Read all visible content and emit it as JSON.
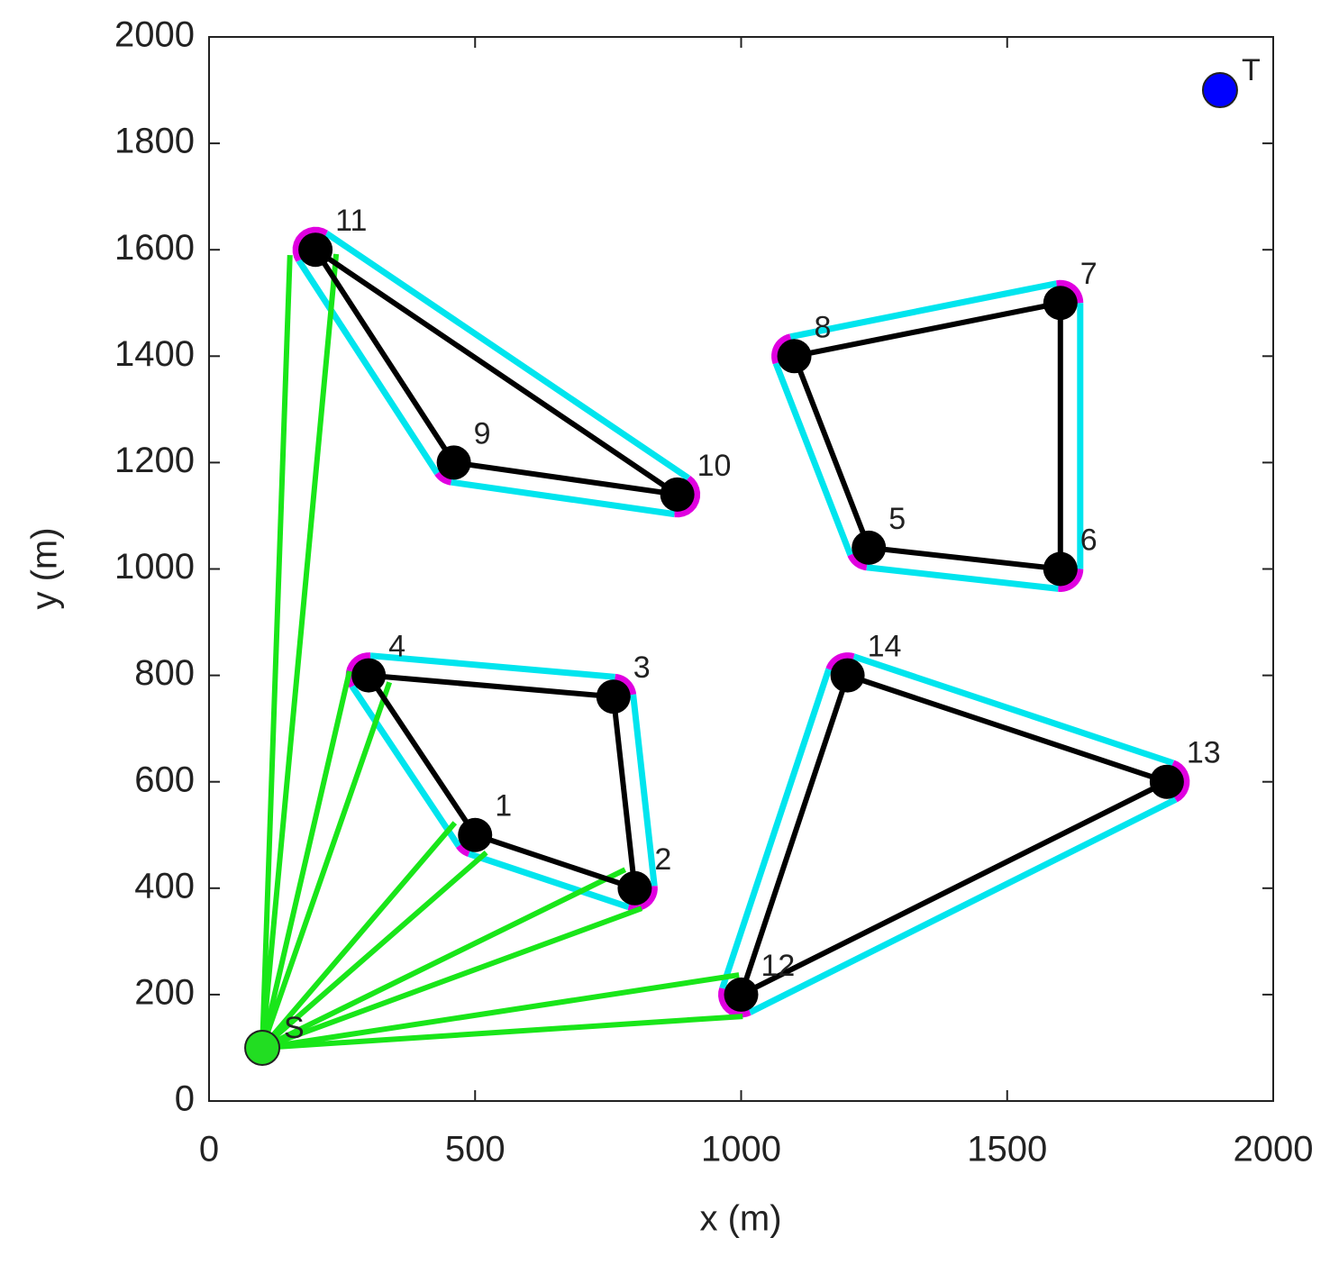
{
  "chart_data": {
    "type": "scatter",
    "x_label": "x (m)",
    "y_label": "y (m)",
    "xlim": [
      0,
      2000
    ],
    "ylim": [
      0,
      2000
    ],
    "xticks": [
      0,
      500,
      1000,
      1500,
      2000
    ],
    "yticks": [
      0,
      200,
      400,
      600,
      800,
      1000,
      1200,
      1400,
      1600,
      1800,
      2000
    ],
    "node_color": "#000000",
    "edge_color": "#000000",
    "hull_color": "#00e5ee",
    "corner_color": "#e000e0",
    "link_color": "#19e619",
    "groups": [
      {
        "labels": [
          "4",
          "3",
          "2",
          "1"
        ],
        "x": [
          300,
          760,
          800,
          500
        ],
        "y": [
          800,
          760,
          400,
          500
        ]
      },
      {
        "labels": [
          "8",
          "7",
          "6",
          "5"
        ],
        "x": [
          1100,
          1600,
          1600,
          1240
        ],
        "y": [
          1400,
          1500,
          1000,
          1040
        ]
      },
      {
        "labels": [
          "11",
          "10",
          "9"
        ],
        "x": [
          200,
          880,
          460
        ],
        "y": [
          1600,
          1140,
          1200
        ]
      },
      {
        "labels": [
          "14",
          "13",
          "12"
        ],
        "x": [
          1200,
          1800,
          1000
        ],
        "y": [
          800,
          600,
          200
        ]
      }
    ],
    "source": {
      "label": "S",
      "x": 100,
      "y": 100,
      "color": "#22dd22"
    },
    "target": {
      "label": "T",
      "x": 1900,
      "y": 1900,
      "color": "#0000ff"
    },
    "links": {
      "x": [
        152,
        239,
        264,
        339,
        462,
        521,
        782,
        813,
        996,
        1003
      ],
      "y": [
        1590,
        1592,
        808,
        787,
        523,
        467,
        435,
        362,
        237,
        159
      ]
    }
  }
}
